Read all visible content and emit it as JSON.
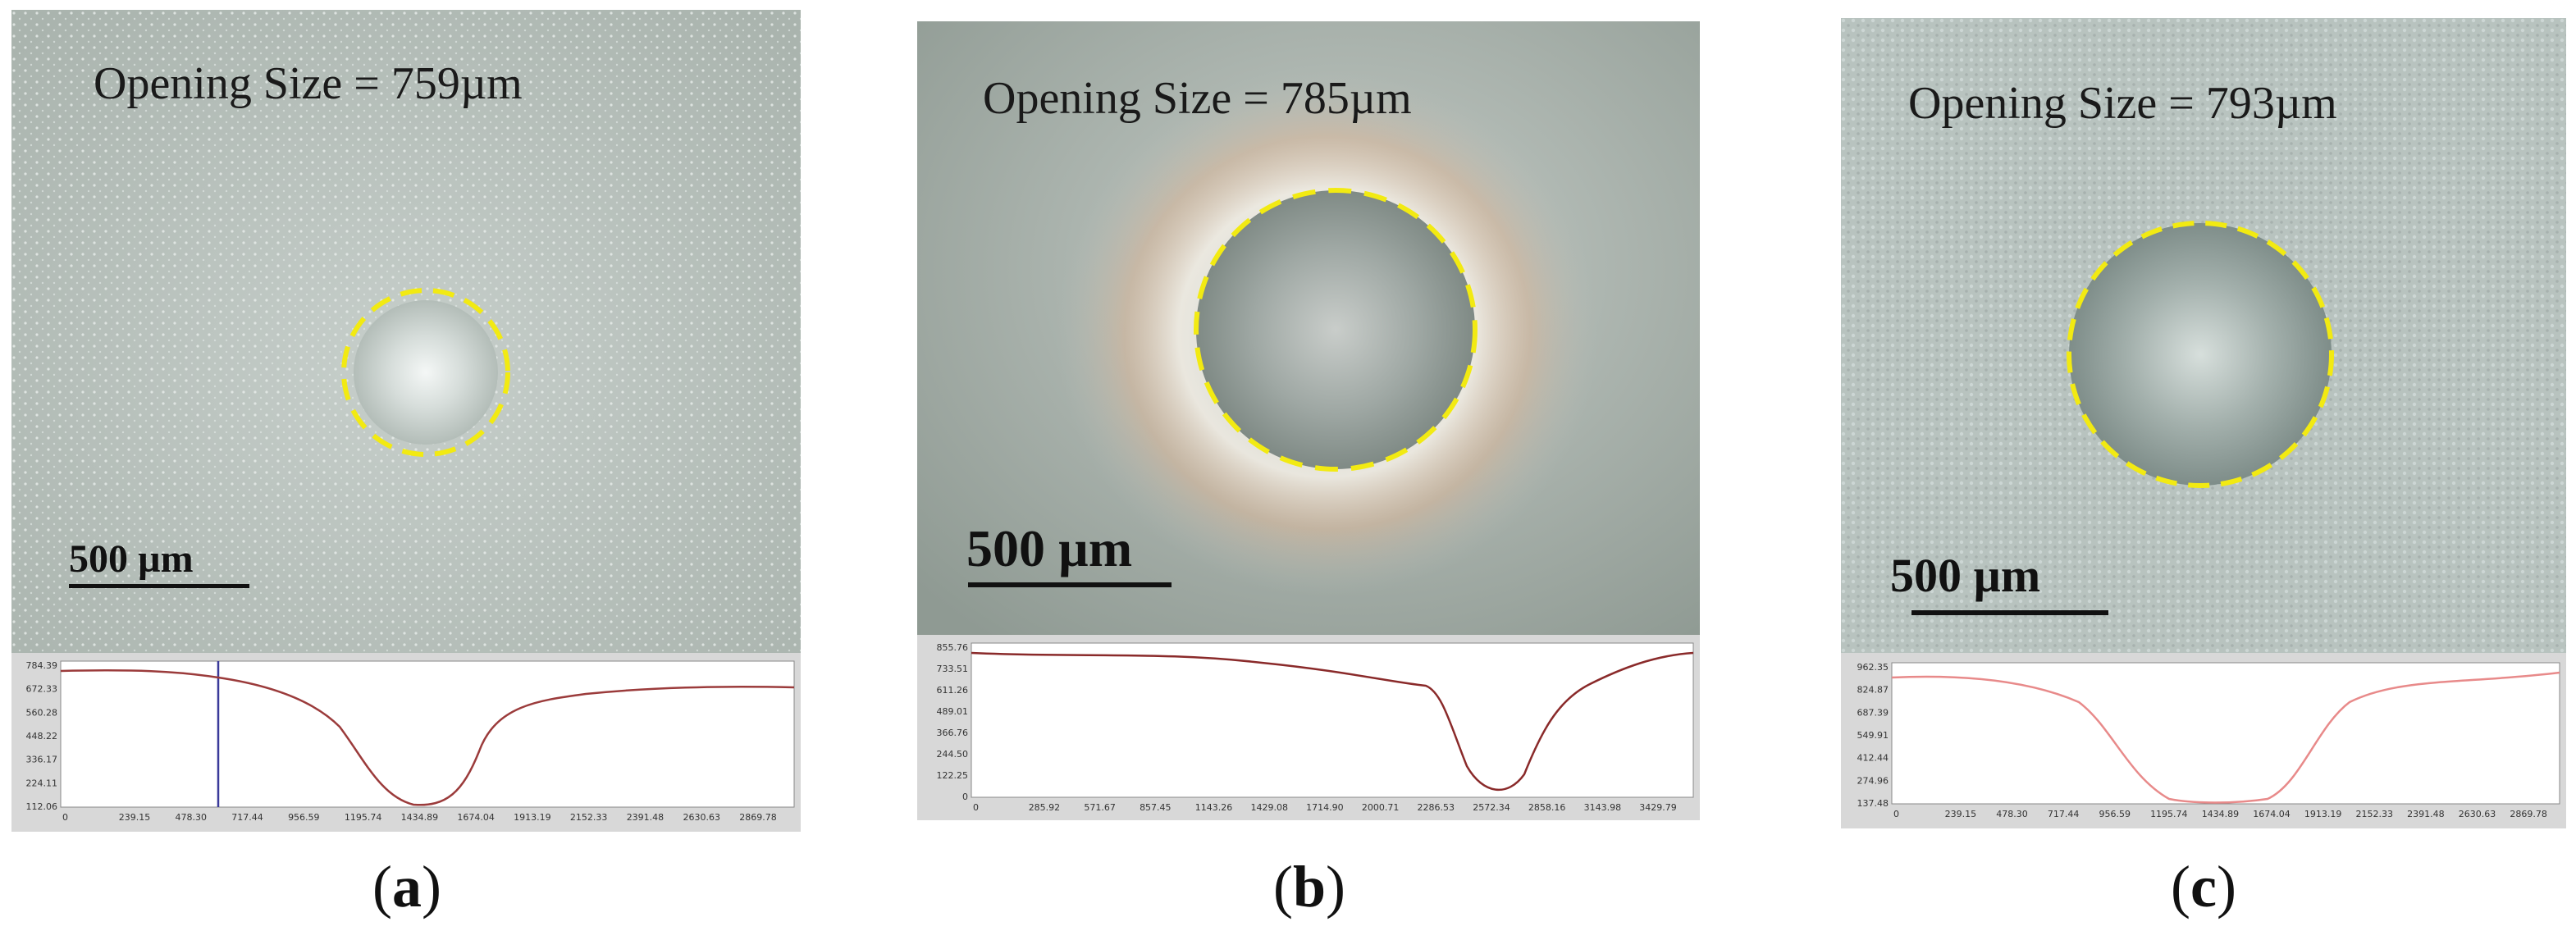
{
  "panels": [
    {
      "id": "a",
      "opening_text": "Opening Size = 759µm",
      "scale_text": "500 µm",
      "caption_letter": "a",
      "profile": {
        "y_ticks": [
          "784.39",
          "672.33",
          "560.28",
          "448.22",
          "336.17",
          "224.11",
          "112.06"
        ],
        "x_ticks": [
          "0",
          "239.15",
          "478.30",
          "717.44",
          "956.59",
          "1195.74",
          "1434.89",
          "1674.04",
          "1913.19",
          "2152.33",
          "2391.48",
          "2630.63",
          "2869.78"
        ]
      }
    },
    {
      "id": "b",
      "opening_text": "Opening Size = 785µm",
      "scale_text": "500 µm",
      "caption_letter": "b",
      "profile": {
        "y_ticks": [
          "855.76",
          "733.51",
          "611.26",
          "489.01",
          "366.76",
          "244.50",
          "122.25",
          "0"
        ],
        "x_ticks": [
          "0",
          "285.92",
          "571.67",
          "857.45",
          "1143.26",
          "1429.08",
          "1714.90",
          "2000.71",
          "2286.53",
          "2572.34",
          "2858.16",
          "3143.98",
          "3429.79"
        ]
      }
    },
    {
      "id": "c",
      "opening_text": "Opening Size = 793µm",
      "scale_text": "500 µm",
      "caption_letter": "c",
      "profile": {
        "y_ticks": [
          "962.35",
          "824.87",
          "687.39",
          "549.91",
          "412.44",
          "274.96",
          "137.48"
        ],
        "x_ticks": [
          "0",
          "239.15",
          "478.30",
          "717.44",
          "956.59",
          "1195.74",
          "1434.89",
          "1674.04",
          "1913.19",
          "2152.33",
          "2391.48",
          "2630.63",
          "2869.78"
        ]
      }
    }
  ],
  "colors": {
    "circle": "#f2ea12",
    "profile_line_a": "#9b3b3b",
    "profile_line_b": "#8a2a2a",
    "profile_line_c": "#e88a8a",
    "cursor": "#3a3a9a"
  }
}
